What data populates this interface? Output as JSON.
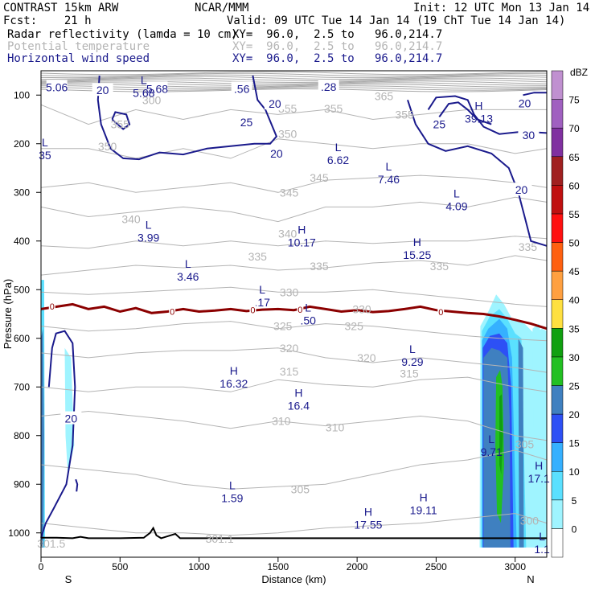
{
  "header": {
    "model": "CONTRAST 15km ARW",
    "org": "NCAR/MMM",
    "init": "Init: 12 UTC Mon 13 Jan 14",
    "fcst": "Fcst:    21 h",
    "valid": "Valid: 09 UTC Tue 14 Jan 14 (19 ChT Tue 14 Jan 14)",
    "field1_name": "Radar reflectivity (lamda = 10 cm)",
    "field1_xy": "XY=  96.0,  2.5 to   96.0,214.7",
    "field2_name": "Potential temperature",
    "field2_xy": "XY=  96.0,  2.5 to   96.0,214.7",
    "field3_name": "Horizontal wind speed",
    "field3_xy": "XY=  96.0,  2.5 to   96.0,214.7"
  },
  "colors": {
    "theta": "#b4b4b4",
    "wind": "#1a1a8c",
    "freezing": "#8b0000",
    "terrain": "#000000"
  },
  "chart_data": {
    "type": "contour",
    "xlabel": "Distance (km)",
    "ylabel": "Pressure (hPa)",
    "xlim": [
      0,
      3200
    ],
    "ylim": [
      1050,
      50
    ],
    "xticks": [
      0,
      500,
      1000,
      1500,
      2000,
      2500,
      3000
    ],
    "yticks": [
      100,
      200,
      300,
      400,
      500,
      600,
      700,
      800,
      900,
      1000
    ],
    "end_labels": {
      "left": "S",
      "right": "N"
    },
    "colorbar": {
      "title": "dBZ",
      "levels": [
        0,
        5,
        10,
        15,
        20,
        25,
        30,
        35,
        40,
        45,
        50,
        55,
        60,
        65,
        70,
        75
      ],
      "colors": [
        "#ffffff",
        "#9ff4ff",
        "#5ae0ff",
        "#35b0ff",
        "#2d50f5",
        "#3f80c0",
        "#22c022",
        "#10a010",
        "#ffe040",
        "#ffa040",
        "#ff6010",
        "#ff1010",
        "#c01010",
        "#a02020",
        "#8030a0",
        "#a060c0",
        "#c090d0"
      ]
    },
    "theta_labels": [
      {
        "text": "300",
        "x": 700,
        "p": 110
      },
      {
        "text": "365",
        "x": 2170,
        "p": 102
      },
      {
        "text": "355",
        "x": 500,
        "p": 160
      },
      {
        "text": "355",
        "x": 1560,
        "p": 128
      },
      {
        "text": "355",
        "x": 1850,
        "p": 128
      },
      {
        "text": "355",
        "x": 2300,
        "p": 140
      },
      {
        "text": "350",
        "x": 420,
        "p": 205
      },
      {
        "text": "350",
        "x": 1560,
        "p": 180
      },
      {
        "text": "345",
        "x": 1760,
        "p": 270
      },
      {
        "text": "345",
        "x": 1570,
        "p": 300
      },
      {
        "text": "340",
        "x": 570,
        "p": 355
      },
      {
        "text": "340",
        "x": 1560,
        "p": 385
      },
      {
        "text": "335",
        "x": 1370,
        "p": 432
      },
      {
        "text": "335",
        "x": 1760,
        "p": 452
      },
      {
        "text": "335",
        "x": 2520,
        "p": 452
      },
      {
        "text": "335",
        "x": 3080,
        "p": 412
      },
      {
        "text": "330",
        "x": 1570,
        "p": 505
      },
      {
        "text": "330",
        "x": 2030,
        "p": 540
      },
      {
        "text": "325",
        "x": 1530,
        "p": 575
      },
      {
        "text": "325",
        "x": 1980,
        "p": 575
      },
      {
        "text": "320",
        "x": 1570,
        "p": 620
      },
      {
        "text": "320",
        "x": 2060,
        "p": 640
      },
      {
        "text": "315",
        "x": 1570,
        "p": 668
      },
      {
        "text": "315",
        "x": 2330,
        "p": 672
      },
      {
        "text": "310",
        "x": 1520,
        "p": 770
      },
      {
        "text": "310",
        "x": 1860,
        "p": 783
      },
      {
        "text": "305",
        "x": 1640,
        "p": 910
      },
      {
        "text": "305",
        "x": 3060,
        "p": 818
      },
      {
        "text": "300",
        "x": 3090,
        "p": 975
      },
      {
        "text": "301.1",
        "x": 1130,
        "p": 1012
      },
      {
        "text": "301.5",
        "x": 65,
        "p": 1022
      }
    ],
    "wind_labels": [
      {
        "text": "5.06",
        "x": 100,
        "p": 84
      },
      {
        "text": "20",
        "x": 390,
        "p": 90
      },
      {
        "text": "5.68",
        "x": 735,
        "p": 87
      },
      {
        "text": ".56",
        "x": 1270,
        "p": 87
      },
      {
        "text": ".28",
        "x": 1820,
        "p": 83
      },
      {
        "text": "25",
        "x": 1300,
        "p": 156
      },
      {
        "text": "20",
        "x": 1480,
        "p": 118
      },
      {
        "text": "20",
        "x": 1490,
        "p": 220
      },
      {
        "text": "25",
        "x": 2520,
        "p": 160
      },
      {
        "text": "20",
        "x": 3060,
        "p": 117
      },
      {
        "text": "30",
        "x": 3085,
        "p": 182
      },
      {
        "text": "20",
        "x": 3040,
        "p": 295
      },
      {
        "text": "20",
        "x": 190,
        "p": 765
      }
    ],
    "extrema": [
      {
        "type": "L",
        "value": "5.68",
        "x": 650,
        "p": 87
      },
      {
        "type": "L",
        "value": "35",
        "x": 25,
        "p": 215
      },
      {
        "type": "H",
        "value": "39.13",
        "x": 2770,
        "p": 140
      },
      {
        "type": "L",
        "value": "6.62",
        "x": 1880,
        "p": 225
      },
      {
        "type": "L",
        "value": "7.46",
        "x": 2200,
        "p": 265
      },
      {
        "type": "L",
        "value": "4.09",
        "x": 2630,
        "p": 320
      },
      {
        "type": "L",
        "value": "3.99",
        "x": 680,
        "p": 385
      },
      {
        "type": "H",
        "value": "10.17",
        "x": 1650,
        "p": 395
      },
      {
        "type": "H",
        "value": "15.25",
        "x": 2380,
        "p": 420
      },
      {
        "type": "L",
        "value": "3.46",
        "x": 930,
        "p": 465
      },
      {
        "type": "L",
        "value": ".17",
        "x": 1400,
        "p": 518
      },
      {
        "type": "L",
        "value": ".50",
        "x": 1690,
        "p": 555
      },
      {
        "type": "L",
        "value": "9.29",
        "x": 2350,
        "p": 640
      },
      {
        "type": "H",
        "value": "16.32",
        "x": 1220,
        "p": 685
      },
      {
        "type": "H",
        "value": "16.4",
        "x": 1630,
        "p": 730
      },
      {
        "type": "L",
        "value": "9.71",
        "x": 2850,
        "p": 825
      },
      {
        "type": "H",
        "value": "17.1",
        "x": 3150,
        "p": 880
      },
      {
        "type": "L",
        "value": "1.59",
        "x": 1210,
        "p": 920
      },
      {
        "type": "H",
        "value": "17.55",
        "x": 2070,
        "p": 975
      },
      {
        "type": "H",
        "value": "19.11",
        "x": 2420,
        "p": 945
      },
      {
        "type": "L",
        "value": "1.1",
        "x": 3170,
        "p": 1025
      }
    ],
    "freezing_labels": [
      {
        "text": "0",
        "x": 70,
        "p": 534
      },
      {
        "text": "0",
        "x": 830,
        "p": 545
      },
      {
        "text": "0",
        "x": 1340,
        "p": 542
      },
      {
        "text": "0",
        "x": 1640,
        "p": 541
      },
      {
        "text": "0",
        "x": 2530,
        "p": 546
      }
    ]
  }
}
